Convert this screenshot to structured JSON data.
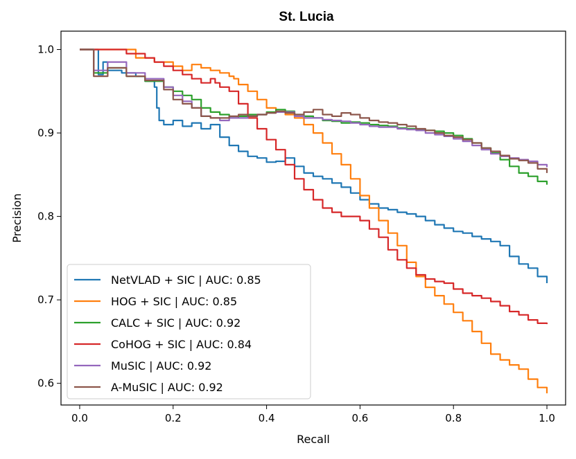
{
  "chart_data": {
    "type": "line",
    "title": "St. Lucia",
    "xlabel": "Recall",
    "ylabel": "Precision",
    "xlim": [
      -0.04,
      1.04
    ],
    "ylim": [
      0.574,
      1.022
    ],
    "xticks": [
      0.0,
      0.2,
      0.4,
      0.6,
      0.8,
      1.0
    ],
    "xtick_labels": [
      "0.0",
      "0.2",
      "0.4",
      "0.6",
      "0.8",
      "1.0"
    ],
    "yticks": [
      0.6,
      0.7,
      0.8,
      0.9,
      1.0
    ],
    "ytick_labels": [
      "0.6",
      "0.7",
      "0.8",
      "0.9",
      "1.0"
    ],
    "grid": false,
    "legend_position": "lower-left",
    "series": [
      {
        "name": "NetVLAD + SIC | AUC: 0.85",
        "color": "#1f77b4",
        "points": [
          [
            0,
            1.0
          ],
          [
            0.04,
            1.0
          ],
          [
            0.04,
            0.97
          ],
          [
            0.05,
            0.985
          ],
          [
            0.06,
            0.975
          ],
          [
            0.08,
            0.975
          ],
          [
            0.09,
            0.972
          ],
          [
            0.12,
            0.968
          ],
          [
            0.14,
            0.962
          ],
          [
            0.16,
            0.955
          ],
          [
            0.165,
            0.93
          ],
          [
            0.17,
            0.915
          ],
          [
            0.18,
            0.91
          ],
          [
            0.2,
            0.915
          ],
          [
            0.22,
            0.908
          ],
          [
            0.24,
            0.912
          ],
          [
            0.26,
            0.905
          ],
          [
            0.28,
            0.91
          ],
          [
            0.3,
            0.895
          ],
          [
            0.32,
            0.885
          ],
          [
            0.34,
            0.878
          ],
          [
            0.36,
            0.872
          ],
          [
            0.38,
            0.87
          ],
          [
            0.4,
            0.865
          ],
          [
            0.42,
            0.866
          ],
          [
            0.44,
            0.87
          ],
          [
            0.46,
            0.86
          ],
          [
            0.48,
            0.852
          ],
          [
            0.5,
            0.848
          ],
          [
            0.52,
            0.845
          ],
          [
            0.54,
            0.84
          ],
          [
            0.56,
            0.835
          ],
          [
            0.58,
            0.828
          ],
          [
            0.6,
            0.82
          ],
          [
            0.62,
            0.815
          ],
          [
            0.64,
            0.81
          ],
          [
            0.66,
            0.808
          ],
          [
            0.68,
            0.805
          ],
          [
            0.7,
            0.803
          ],
          [
            0.72,
            0.8
          ],
          [
            0.74,
            0.795
          ],
          [
            0.76,
            0.79
          ],
          [
            0.78,
            0.786
          ],
          [
            0.8,
            0.782
          ],
          [
            0.82,
            0.78
          ],
          [
            0.84,
            0.776
          ],
          [
            0.86,
            0.773
          ],
          [
            0.88,
            0.77
          ],
          [
            0.9,
            0.765
          ],
          [
            0.92,
            0.752
          ],
          [
            0.94,
            0.743
          ],
          [
            0.96,
            0.738
          ],
          [
            0.98,
            0.728
          ],
          [
            1.0,
            0.72
          ]
        ]
      },
      {
        "name": "HOG + SIC | AUC: 0.85",
        "color": "#ff7f0e",
        "points": [
          [
            0,
            1.0
          ],
          [
            0.11,
            1.0
          ],
          [
            0.12,
            0.99
          ],
          [
            0.16,
            0.985
          ],
          [
            0.2,
            0.98
          ],
          [
            0.22,
            0.975
          ],
          [
            0.24,
            0.982
          ],
          [
            0.26,
            0.978
          ],
          [
            0.28,
            0.975
          ],
          [
            0.3,
            0.972
          ],
          [
            0.32,
            0.968
          ],
          [
            0.33,
            0.965
          ],
          [
            0.34,
            0.958
          ],
          [
            0.36,
            0.95
          ],
          [
            0.38,
            0.94
          ],
          [
            0.4,
            0.93
          ],
          [
            0.42,
            0.925
          ],
          [
            0.44,
            0.922
          ],
          [
            0.46,
            0.918
          ],
          [
            0.48,
            0.91
          ],
          [
            0.5,
            0.9
          ],
          [
            0.52,
            0.888
          ],
          [
            0.54,
            0.875
          ],
          [
            0.56,
            0.862
          ],
          [
            0.58,
            0.845
          ],
          [
            0.6,
            0.825
          ],
          [
            0.62,
            0.81
          ],
          [
            0.64,
            0.795
          ],
          [
            0.66,
            0.78
          ],
          [
            0.68,
            0.765
          ],
          [
            0.7,
            0.745
          ],
          [
            0.72,
            0.728
          ],
          [
            0.74,
            0.715
          ],
          [
            0.76,
            0.705
          ],
          [
            0.78,
            0.695
          ],
          [
            0.8,
            0.685
          ],
          [
            0.82,
            0.675
          ],
          [
            0.84,
            0.662
          ],
          [
            0.86,
            0.648
          ],
          [
            0.88,
            0.635
          ],
          [
            0.9,
            0.628
          ],
          [
            0.92,
            0.622
          ],
          [
            0.94,
            0.617
          ],
          [
            0.96,
            0.605
          ],
          [
            0.98,
            0.595
          ],
          [
            1.0,
            0.588
          ]
        ]
      },
      {
        "name": "CALC + SIC | AUC: 0.92",
        "color": "#2ca02c",
        "points": [
          [
            0,
            1.0
          ],
          [
            0.03,
            1.0
          ],
          [
            0.03,
            0.972
          ],
          [
            0.06,
            0.978
          ],
          [
            0.1,
            0.968
          ],
          [
            0.14,
            0.962
          ],
          [
            0.18,
            0.955
          ],
          [
            0.2,
            0.95
          ],
          [
            0.22,
            0.945
          ],
          [
            0.24,
            0.94
          ],
          [
            0.26,
            0.93
          ],
          [
            0.28,
            0.925
          ],
          [
            0.3,
            0.922
          ],
          [
            0.32,
            0.918
          ],
          [
            0.34,
            0.92
          ],
          [
            0.36,
            0.922
          ],
          [
            0.38,
            0.922
          ],
          [
            0.4,
            0.925
          ],
          [
            0.42,
            0.928
          ],
          [
            0.44,
            0.926
          ],
          [
            0.46,
            0.922
          ],
          [
            0.48,
            0.92
          ],
          [
            0.5,
            0.918
          ],
          [
            0.52,
            0.915
          ],
          [
            0.54,
            0.914
          ],
          [
            0.56,
            0.912
          ],
          [
            0.58,
            0.913
          ],
          [
            0.6,
            0.912
          ],
          [
            0.62,
            0.91
          ],
          [
            0.64,
            0.909
          ],
          [
            0.66,
            0.908
          ],
          [
            0.68,
            0.906
          ],
          [
            0.7,
            0.905
          ],
          [
            0.72,
            0.904
          ],
          [
            0.74,
            0.903
          ],
          [
            0.76,
            0.902
          ],
          [
            0.78,
            0.9
          ],
          [
            0.8,
            0.897
          ],
          [
            0.82,
            0.893
          ],
          [
            0.84,
            0.888
          ],
          [
            0.86,
            0.882
          ],
          [
            0.88,
            0.876
          ],
          [
            0.9,
            0.868
          ],
          [
            0.92,
            0.86
          ],
          [
            0.94,
            0.852
          ],
          [
            0.96,
            0.848
          ],
          [
            0.98,
            0.842
          ],
          [
            1.0,
            0.838
          ]
        ]
      },
      {
        "name": "CoHOG + SIC | AUC: 0.84",
        "color": "#d62728",
        "points": [
          [
            0,
            1.0
          ],
          [
            0.1,
            1.0
          ],
          [
            0.1,
            0.995
          ],
          [
            0.14,
            0.99
          ],
          [
            0.16,
            0.985
          ],
          [
            0.18,
            0.98
          ],
          [
            0.2,
            0.975
          ],
          [
            0.22,
            0.97
          ],
          [
            0.24,
            0.965
          ],
          [
            0.26,
            0.96
          ],
          [
            0.28,
            0.965
          ],
          [
            0.29,
            0.96
          ],
          [
            0.3,
            0.955
          ],
          [
            0.32,
            0.95
          ],
          [
            0.34,
            0.935
          ],
          [
            0.36,
            0.918
          ],
          [
            0.38,
            0.905
          ],
          [
            0.4,
            0.892
          ],
          [
            0.42,
            0.88
          ],
          [
            0.44,
            0.862
          ],
          [
            0.46,
            0.845
          ],
          [
            0.48,
            0.832
          ],
          [
            0.5,
            0.82
          ],
          [
            0.52,
            0.81
          ],
          [
            0.54,
            0.805
          ],
          [
            0.56,
            0.8
          ],
          [
            0.58,
            0.8
          ],
          [
            0.6,
            0.795
          ],
          [
            0.62,
            0.785
          ],
          [
            0.64,
            0.775
          ],
          [
            0.66,
            0.76
          ],
          [
            0.68,
            0.748
          ],
          [
            0.7,
            0.738
          ],
          [
            0.72,
            0.73
          ],
          [
            0.74,
            0.725
          ],
          [
            0.76,
            0.722
          ],
          [
            0.78,
            0.72
          ],
          [
            0.8,
            0.713
          ],
          [
            0.82,
            0.708
          ],
          [
            0.84,
            0.705
          ],
          [
            0.86,
            0.702
          ],
          [
            0.88,
            0.698
          ],
          [
            0.9,
            0.693
          ],
          [
            0.92,
            0.686
          ],
          [
            0.94,
            0.682
          ],
          [
            0.96,
            0.676
          ],
          [
            0.98,
            0.672
          ],
          [
            1.0,
            0.671
          ]
        ]
      },
      {
        "name": "MuSIC | AUC: 0.92",
        "color": "#9467bd",
        "points": [
          [
            0,
            1.0
          ],
          [
            0.03,
            1.0
          ],
          [
            0.03,
            0.975
          ],
          [
            0.06,
            0.985
          ],
          [
            0.1,
            0.972
          ],
          [
            0.14,
            0.965
          ],
          [
            0.18,
            0.955
          ],
          [
            0.2,
            0.945
          ],
          [
            0.22,
            0.938
          ],
          [
            0.24,
            0.93
          ],
          [
            0.26,
            0.92
          ],
          [
            0.28,
            0.918
          ],
          [
            0.3,
            0.915
          ],
          [
            0.32,
            0.918
          ],
          [
            0.34,
            0.918
          ],
          [
            0.36,
            0.92
          ],
          [
            0.38,
            0.922
          ],
          [
            0.4,
            0.924
          ],
          [
            0.42,
            0.925
          ],
          [
            0.44,
            0.925
          ],
          [
            0.46,
            0.92
          ],
          [
            0.48,
            0.918
          ],
          [
            0.5,
            0.918
          ],
          [
            0.52,
            0.916
          ],
          [
            0.54,
            0.915
          ],
          [
            0.56,
            0.914
          ],
          [
            0.58,
            0.912
          ],
          [
            0.6,
            0.91
          ],
          [
            0.62,
            0.908
          ],
          [
            0.64,
            0.907
          ],
          [
            0.66,
            0.907
          ],
          [
            0.68,
            0.905
          ],
          [
            0.7,
            0.904
          ],
          [
            0.72,
            0.903
          ],
          [
            0.74,
            0.9
          ],
          [
            0.76,
            0.898
          ],
          [
            0.78,
            0.896
          ],
          [
            0.8,
            0.893
          ],
          [
            0.82,
            0.89
          ],
          [
            0.84,
            0.885
          ],
          [
            0.86,
            0.88
          ],
          [
            0.88,
            0.875
          ],
          [
            0.9,
            0.872
          ],
          [
            0.92,
            0.87
          ],
          [
            0.94,
            0.868
          ],
          [
            0.96,
            0.866
          ],
          [
            0.98,
            0.862
          ],
          [
            1.0,
            0.859
          ]
        ]
      },
      {
        "name": "A-MuSIC | AUC: 0.92",
        "color": "#8c564b",
        "points": [
          [
            0,
            1.0
          ],
          [
            0.03,
            1.0
          ],
          [
            0.03,
            0.968
          ],
          [
            0.06,
            0.978
          ],
          [
            0.1,
            0.968
          ],
          [
            0.14,
            0.963
          ],
          [
            0.18,
            0.952
          ],
          [
            0.2,
            0.94
          ],
          [
            0.22,
            0.935
          ],
          [
            0.24,
            0.93
          ],
          [
            0.26,
            0.92
          ],
          [
            0.28,
            0.918
          ],
          [
            0.3,
            0.918
          ],
          [
            0.32,
            0.92
          ],
          [
            0.34,
            0.922
          ],
          [
            0.36,
            0.92
          ],
          [
            0.38,
            0.922
          ],
          [
            0.4,
            0.924
          ],
          [
            0.42,
            0.926
          ],
          [
            0.44,
            0.924
          ],
          [
            0.46,
            0.922
          ],
          [
            0.48,
            0.925
          ],
          [
            0.5,
            0.928
          ],
          [
            0.52,
            0.922
          ],
          [
            0.54,
            0.92
          ],
          [
            0.56,
            0.924
          ],
          [
            0.58,
            0.922
          ],
          [
            0.6,
            0.918
          ],
          [
            0.62,
            0.915
          ],
          [
            0.64,
            0.913
          ],
          [
            0.66,
            0.912
          ],
          [
            0.68,
            0.91
          ],
          [
            0.7,
            0.908
          ],
          [
            0.72,
            0.905
          ],
          [
            0.74,
            0.903
          ],
          [
            0.76,
            0.9
          ],
          [
            0.78,
            0.897
          ],
          [
            0.8,
            0.895
          ],
          [
            0.82,
            0.892
          ],
          [
            0.84,
            0.888
          ],
          [
            0.86,
            0.882
          ],
          [
            0.88,
            0.878
          ],
          [
            0.9,
            0.873
          ],
          [
            0.92,
            0.869
          ],
          [
            0.94,
            0.867
          ],
          [
            0.96,
            0.864
          ],
          [
            0.98,
            0.857
          ],
          [
            1.0,
            0.852
          ]
        ]
      }
    ]
  }
}
